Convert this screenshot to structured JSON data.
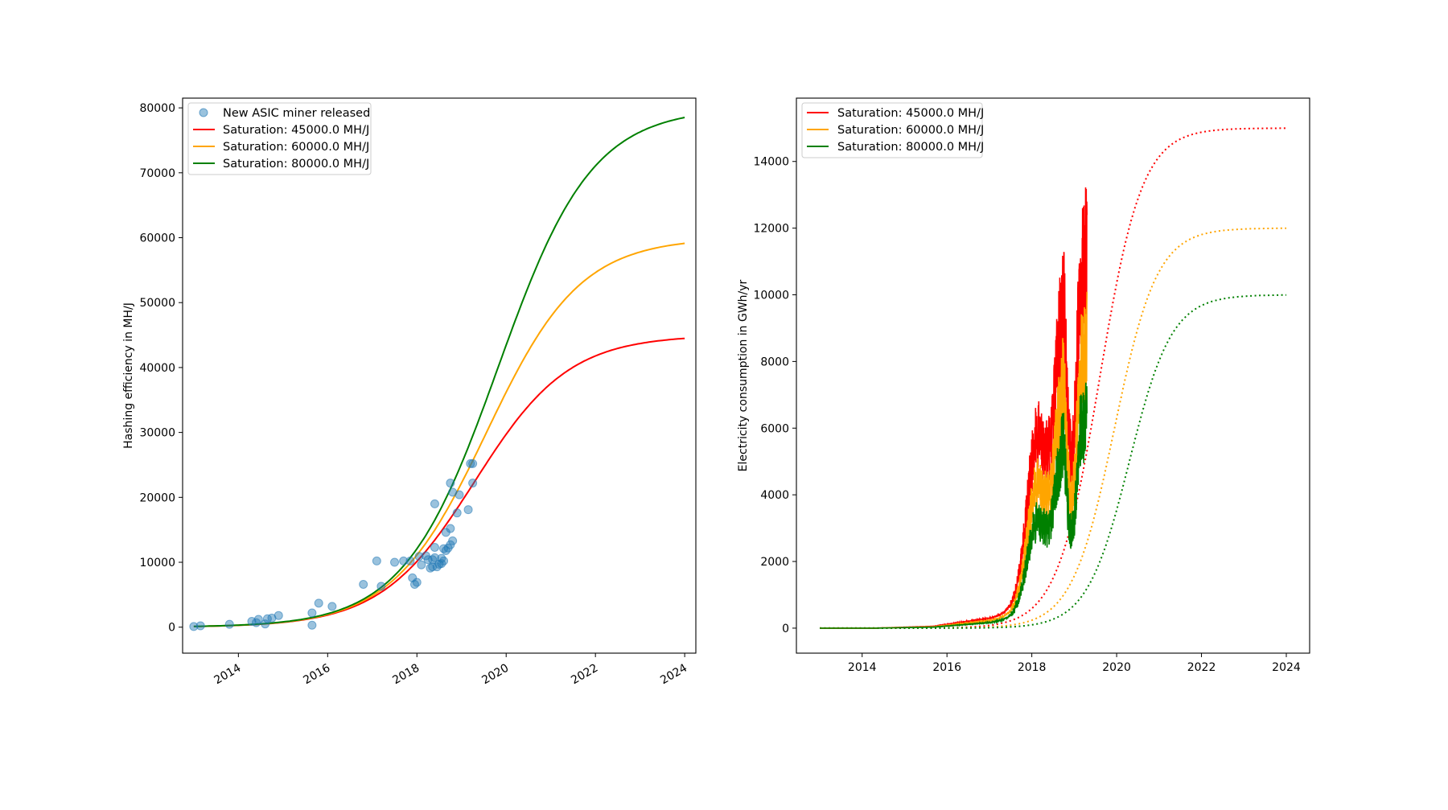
{
  "chart_data": [
    {
      "type": "scatter",
      "xlabel": "",
      "ylabel": "Hashing efficiency in MH/J",
      "xlim": [
        2012.75,
        2024.25
      ],
      "ylim": [
        -4000,
        81500
      ],
      "xticks": [
        "2014",
        "2016",
        "2018",
        "2020",
        "2022",
        "2024"
      ],
      "yticks": [
        "0",
        "10000",
        "20000",
        "30000",
        "40000",
        "50000",
        "60000",
        "70000",
        "80000"
      ],
      "grid": false,
      "legend": "top-left",
      "scatter_series": {
        "name": "New ASIC miner released",
        "color": "#1f77b4",
        "points": [
          [
            2013.0,
            100
          ],
          [
            2013.15,
            220
          ],
          [
            2013.8,
            450
          ],
          [
            2014.3,
            900
          ],
          [
            2014.4,
            700
          ],
          [
            2014.45,
            1200
          ],
          [
            2014.6,
            500
          ],
          [
            2014.65,
            1300
          ],
          [
            2014.75,
            1400
          ],
          [
            2014.9,
            1800
          ],
          [
            2015.65,
            300
          ],
          [
            2015.65,
            2200
          ],
          [
            2015.8,
            3700
          ],
          [
            2016.1,
            3200
          ],
          [
            2016.8,
            6600
          ],
          [
            2017.1,
            10200
          ],
          [
            2017.2,
            6300
          ],
          [
            2017.5,
            10000
          ],
          [
            2017.7,
            10200
          ],
          [
            2017.85,
            10200
          ],
          [
            2017.9,
            7600
          ],
          [
            2017.95,
            6600
          ],
          [
            2018.0,
            6900
          ],
          [
            2018.05,
            10900
          ],
          [
            2018.1,
            9600
          ],
          [
            2018.2,
            11000
          ],
          [
            2018.25,
            10400
          ],
          [
            2018.3,
            9100
          ],
          [
            2018.35,
            9300
          ],
          [
            2018.35,
            10400
          ],
          [
            2018.4,
            10700
          ],
          [
            2018.4,
            12300
          ],
          [
            2018.4,
            19000
          ],
          [
            2018.45,
            9300
          ],
          [
            2018.5,
            9700
          ],
          [
            2018.55,
            10600
          ],
          [
            2018.55,
            9800
          ],
          [
            2018.6,
            12100
          ],
          [
            2018.6,
            10200
          ],
          [
            2018.65,
            14600
          ],
          [
            2018.65,
            11800
          ],
          [
            2018.7,
            12200
          ],
          [
            2018.75,
            15200
          ],
          [
            2018.75,
            12700
          ],
          [
            2018.75,
            22200
          ],
          [
            2018.8,
            20800
          ],
          [
            2018.8,
            13300
          ],
          [
            2018.9,
            17600
          ],
          [
            2018.95,
            20400
          ],
          [
            2019.15,
            18100
          ],
          [
            2019.2,
            25200
          ],
          [
            2019.25,
            25200
          ],
          [
            2019.25,
            22200
          ]
        ]
      },
      "curves": [
        {
          "name": "Saturation: 45000.0 MH/J",
          "color": "#ff0000",
          "L": 45000,
          "style": "solid"
        },
        {
          "name": "Saturation: 60000.0 MH/J",
          "color": "#ffa500",
          "L": 60000,
          "style": "solid"
        },
        {
          "name": "Saturation: 80000.0 MH/J",
          "color": "#008000",
          "L": 80000,
          "style": "solid"
        }
      ],
      "x_range": [
        2013.0,
        2024.0
      ]
    },
    {
      "type": "line",
      "xlabel": "",
      "ylabel": "Electricity consumption in GWh/yr",
      "xlim": [
        2012.45,
        2024.55
      ],
      "ylim": [
        -750,
        15900
      ],
      "xticks": [
        "2014",
        "2016",
        "2018",
        "2020",
        "2022",
        "2024"
      ],
      "yticks": [
        "0",
        "2000",
        "4000",
        "6000",
        "8000",
        "10000",
        "12000",
        "14000"
      ],
      "grid": false,
      "legend": "top-left",
      "series": [
        {
          "name": "Saturation: 45000.0 MH/J",
          "color": "#ff0000",
          "scale": 1.0,
          "saturation": 15000,
          "projection_style": "dotted"
        },
        {
          "name": "Saturation: 60000.0 MH/J",
          "color": "#ffa500",
          "scale": 0.75,
          "saturation": 12000,
          "projection_style": "dotted"
        },
        {
          "name": "Saturation: 80000.0 MH/J",
          "color": "#008000",
          "scale": 0.5625,
          "saturation": 10000,
          "projection_style": "dotted"
        }
      ],
      "observed_range": [
        2013.0,
        2019.3
      ],
      "projection_range": [
        2013.0,
        2024.0
      ]
    }
  ]
}
